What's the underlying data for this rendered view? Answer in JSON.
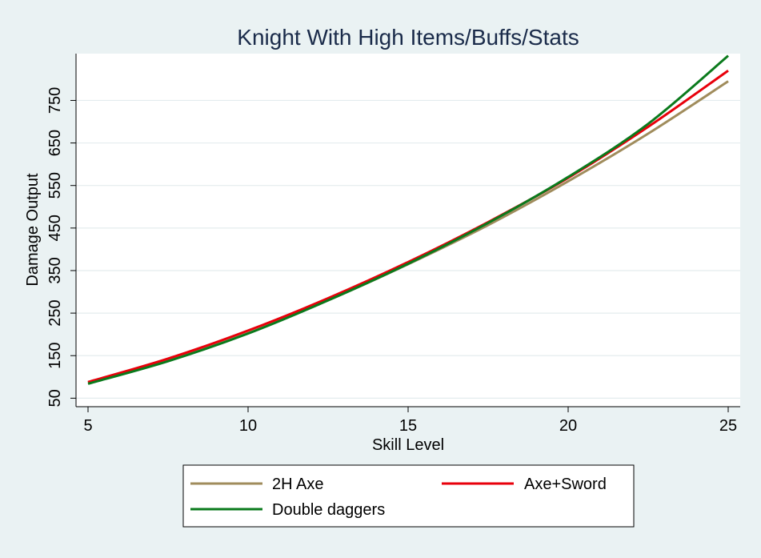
{
  "chart_data": {
    "type": "line",
    "title": "Knight With High Items/Buffs/Stats",
    "xlabel": "Skill Level",
    "ylabel": "Damage Output",
    "xlim": [
      5,
      25
    ],
    "ylim": [
      30,
      860
    ],
    "xticks": [
      5,
      10,
      15,
      20,
      25
    ],
    "xtick_labels": [
      "5",
      "10",
      "15",
      "20",
      "25"
    ],
    "yticks": [
      50,
      150,
      250,
      350,
      450,
      550,
      650,
      750
    ],
    "ytick_labels": [
      "50",
      "150",
      "250",
      "350",
      "450",
      "550",
      "650",
      "750"
    ],
    "grid": true,
    "legend_position": "bottom",
    "x": [
      5,
      7.5,
      10,
      12.5,
      15,
      17.5,
      20,
      22.5,
      25
    ],
    "series": [
      {
        "name": "2H Axe",
        "color": "#a08c5c",
        "values": [
          87,
          140,
          203,
          280,
          365,
          457,
          560,
          672,
          795
        ]
      },
      {
        "name": "Axe+Sword",
        "color": "#e8000b",
        "values": [
          88,
          143,
          209,
          285,
          370,
          464,
          568,
          688,
          820
        ]
      },
      {
        "name": "Double daggers",
        "color": "#0a7a1c",
        "values": [
          84,
          137,
          202,
          280,
          366,
          462,
          570,
          695,
          855
        ]
      }
    ]
  }
}
